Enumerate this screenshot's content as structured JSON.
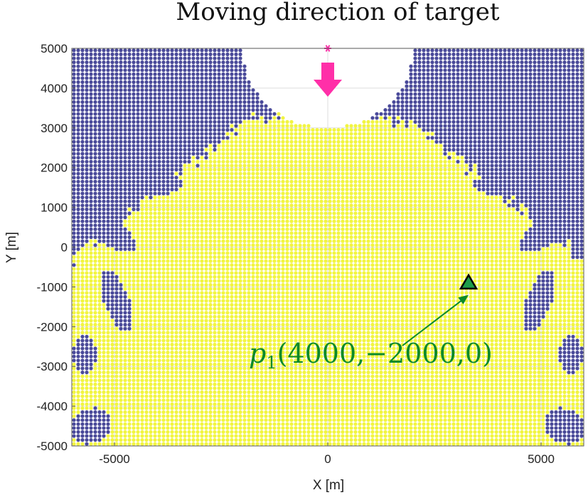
{
  "chart_data": {
    "type": "scatter",
    "title": "Moving direction of target",
    "xlabel": "X [m]",
    "ylabel": "Y [m]",
    "xlim": [
      -6000,
      6000
    ],
    "ylim": [
      -5000,
      5000
    ],
    "x_ticks": [
      -5000,
      0,
      5000
    ],
    "y_ticks": [
      5000,
      4000,
      3000,
      2000,
      1000,
      0,
      -1000,
      -2000,
      -3000,
      -4000,
      -5000
    ],
    "x_tick_labels": [
      "-5000",
      "0",
      "5000"
    ],
    "y_tick_labels": [
      "5000",
      "4000",
      "3000",
      "2000",
      "1000",
      "0",
      "-1000",
      "-2000",
      "-3000",
      "-4000",
      "-5000"
    ],
    "grid": true,
    "colors": {
      "region_yellow": "#f2f542",
      "region_blue": "#4a4a9a",
      "target": "#ff2fa8",
      "marker_fill": "#1e9e4a",
      "annotation": "#0a8a2a",
      "grid": "#dddddd"
    },
    "series": [
      {
        "name": "",
        "type": "region_grid",
        "color": "#f2f542"
      },
      {
        "name": "",
        "type": "region_grid",
        "color": "#4a4a9a"
      }
    ],
    "target": {
      "x": 0,
      "y": 5000,
      "marker": "asterisk",
      "direction": "down"
    },
    "marker_point": {
      "x": 3300,
      "y": -900,
      "marker": "triangle"
    },
    "annotation": {
      "var": "p",
      "sub": "1",
      "coords": "(4000,−2000,0)",
      "arrow_to": {
        "x": 3300,
        "y": -1200
      }
    }
  }
}
